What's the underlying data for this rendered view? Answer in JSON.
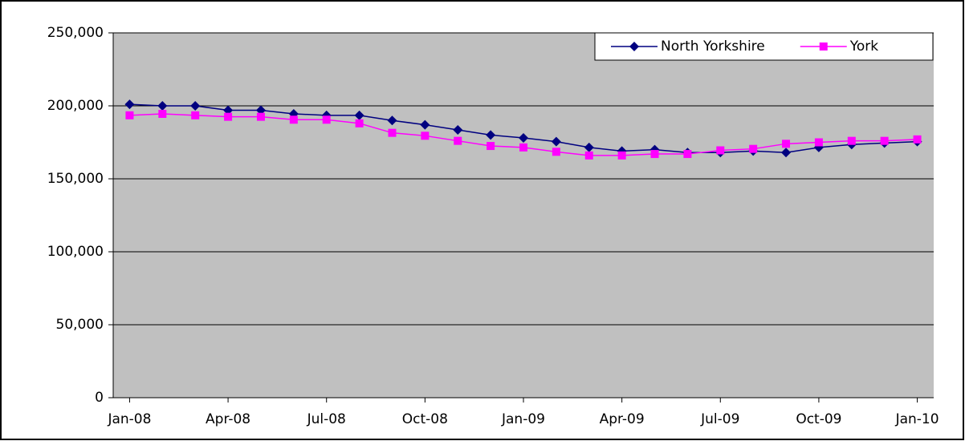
{
  "chart_data": {
    "type": "line",
    "categories": [
      "Jan-08",
      null,
      null,
      "Apr-08",
      null,
      null,
      "Jul-08",
      null,
      null,
      "Oct-08",
      null,
      null,
      "Jan-09",
      null,
      null,
      "Apr-09",
      null,
      null,
      "Jul-09",
      null,
      null,
      "Oct-09",
      null,
      null,
      "Jan-10"
    ],
    "series": [
      {
        "name": "North Yorkshire",
        "color": "#000080",
        "marker": "diamond",
        "values": [
          201000,
          200000,
          200000,
          197000,
          197000,
          194500,
          193500,
          193500,
          190000,
          187000,
          183500,
          180000,
          178000,
          175500,
          171500,
          169000,
          170000,
          168000,
          168000,
          169000,
          168000,
          171500,
          173500,
          174500,
          175500
        ]
      },
      {
        "name": "York",
        "color": "#ff00ff",
        "marker": "square",
        "values": [
          193500,
          194500,
          193500,
          192500,
          192500,
          190500,
          190500,
          188000,
          181500,
          179500,
          176000,
          172500,
          171500,
          168500,
          166000,
          166000,
          167000,
          167000,
          169500,
          170500,
          174000,
          175000,
          176000,
          176000,
          177000
        ]
      }
    ],
    "ylim": [
      0,
      250000
    ],
    "yticks": [
      0,
      {
        "value": 50000,
        "label": "50,000"
      },
      {
        "value": 100000,
        "label": "100,000"
      },
      {
        "value": 150000,
        "label": "150,000"
      },
      {
        "value": 200000,
        "label": "200,000"
      },
      {
        "value": 250000,
        "label": "250,000"
      }
    ],
    "grid": true,
    "legend": "upper right",
    "background": "#c0c0c0"
  }
}
